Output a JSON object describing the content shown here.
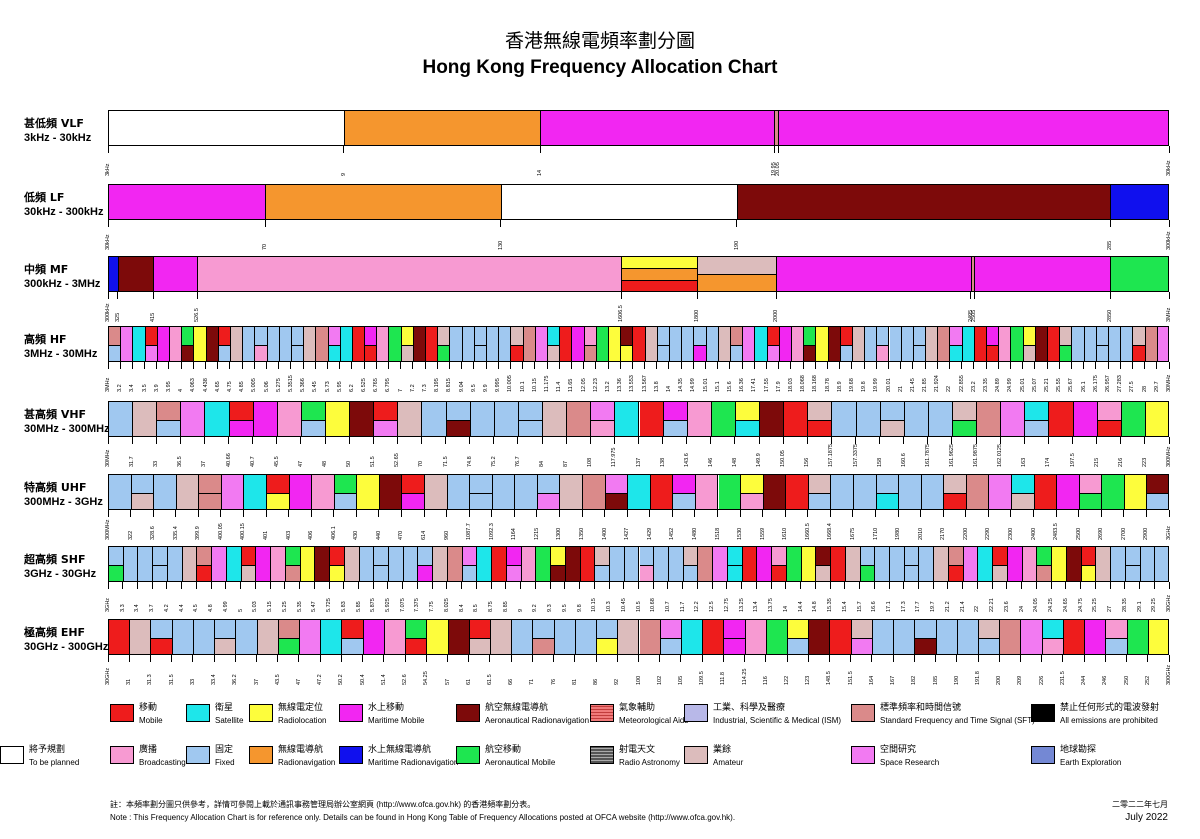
{
  "title_zh": "香港無線電頻率劃分圖",
  "title_en": "Hong Kong Frequency Allocation Chart",
  "colors": {
    "mobile": "#ee1c1c",
    "satellite": "#1ee6ea",
    "radiolocation": "#fdfd3c",
    "maritime_mobile": "#f226f2",
    "aero_radionav": "#7d0a0a",
    "met_aids": "#f07a7a",
    "ism": "#b8b8e8",
    "sft": "#da8a8a",
    "prohibited": "#000000",
    "broadcasting": "#f79ad2",
    "fixed": "#a0c8f0",
    "radionav": "#f5962e",
    "maritime_radionav": "#1010ee",
    "aero_mobile": "#1ee650",
    "radio_astronomy": "#8a8a8a",
    "amateur": "#dcbcbc",
    "space_research": "#f27af2",
    "earth_exploration": "#7488d4",
    "to_be_planned": "#ffffff"
  },
  "chart_data": {
    "type": "table",
    "title": "Hong Kong Frequency Allocation Chart",
    "bands": [
      {
        "label_zh": "甚低頻 VLF",
        "range": "3kHz - 30kHz",
        "start": "3kHz",
        "end": "30kHz",
        "ticks": [
          9,
          14,
          19.95,
          20.05
        ],
        "segments": [
          {
            "from": 3,
            "to": 9,
            "services": [
              "to_be_planned"
            ]
          },
          {
            "from": 9,
            "to": 14,
            "services": [
              "radionav"
            ]
          },
          {
            "from": 14,
            "to": 19.95,
            "services": [
              "maritime_mobile"
            ]
          },
          {
            "from": 19.95,
            "to": 20.05,
            "services": [
              "sft"
            ]
          },
          {
            "from": 20.05,
            "to": 30,
            "services": [
              "maritime_mobile"
            ]
          }
        ]
      },
      {
        "label_zh": "低頻 LF",
        "range": "30kHz - 300kHz",
        "start": "30kHz",
        "end": "300kHz",
        "ticks": [
          70,
          130,
          190,
          285
        ],
        "segments": [
          {
            "from": 30,
            "to": 70,
            "services": [
              "maritime_mobile"
            ]
          },
          {
            "from": 70,
            "to": 130,
            "services": [
              "radionav"
            ]
          },
          {
            "from": 130,
            "to": 190,
            "services": [
              "to_be_planned"
            ]
          },
          {
            "from": 190,
            "to": 285,
            "services": [
              "aero_radionav"
            ]
          },
          {
            "from": 285,
            "to": 300,
            "services": [
              "maritime_radionav"
            ]
          }
        ]
      },
      {
        "label_zh": "中頻 MF",
        "range": "300kHz - 3MHz",
        "start": "300kHz",
        "end": "3MHz",
        "ticks": [
          325,
          415,
          526.5,
          1606.5,
          1800,
          2000,
          2495,
          2505,
          2850
        ],
        "segments": [
          {
            "from": 300,
            "to": 325,
            "services": [
              "maritime_radionav"
            ]
          },
          {
            "from": 325,
            "to": 415,
            "services": [
              "aero_radionav"
            ]
          },
          {
            "from": 415,
            "to": 526.5,
            "services": [
              "maritime_mobile"
            ]
          },
          {
            "from": 526.5,
            "to": 1606.5,
            "services": [
              "broadcasting"
            ]
          },
          {
            "from": 1606.5,
            "to": 1800,
            "services": [
              "radiolocation",
              "radionav",
              "mobile"
            ]
          },
          {
            "from": 1800,
            "to": 2000,
            "services": [
              "amateur",
              "radionav"
            ]
          },
          {
            "from": 2000,
            "to": 2495,
            "services": [
              "maritime_mobile"
            ]
          },
          {
            "from": 2495,
            "to": 2505,
            "services": [
              "sft"
            ]
          },
          {
            "from": 2505,
            "to": 2850,
            "services": [
              "maritime_mobile"
            ]
          },
          {
            "from": 2850,
            "to": 3000,
            "services": [
              "aero_mobile"
            ]
          }
        ]
      },
      {
        "label_zh": "高頻 HF",
        "range": "3MHz - 30MHz",
        "start": "3MHz",
        "end": "30MHz",
        "ticks": [
          3.2,
          3.4,
          3.5,
          3.9,
          3.95,
          4,
          4.063,
          4.438,
          4.65,
          4.75,
          4.85,
          5.005,
          5.06,
          5.275,
          5.3515,
          5.366,
          5.45,
          5.73,
          5.95,
          6.2,
          6.525,
          6.765,
          6.795,
          7,
          7.2,
          7.3,
          8.195,
          8.815,
          9.04,
          9.5,
          9.9,
          9.995,
          10.005,
          10.1,
          10.15,
          11.175,
          11.4,
          11.65,
          12.05,
          12.23,
          13.2,
          13.36,
          13.553,
          13.567,
          13.8,
          14,
          14.35,
          14.99,
          15.01,
          15.1,
          15.6,
          16.36,
          17.41,
          17.55,
          17.9,
          18.03,
          18.068,
          18.168,
          18.78,
          18.9,
          19.68,
          19.8,
          19.99,
          20.01,
          21,
          21.45,
          21.85,
          21.924,
          22,
          22.855,
          23.2,
          23.35,
          24.89,
          24.99,
          25.01,
          25.07,
          25.21,
          25.55,
          25.67,
          26.1,
          26.175,
          26.957,
          27.283,
          27.5,
          28,
          29.7
        ]
      },
      {
        "label_zh": "甚高頻 VHF",
        "range": "30MHz - 300MHz",
        "start": "30MHz",
        "end": "300MHz",
        "ticks": [
          31.7,
          33,
          36.5,
          37,
          40.66,
          40.7,
          45.5,
          47,
          48,
          50,
          51.5,
          52.65,
          70,
          71.5,
          74.8,
          75.2,
          76.7,
          84,
          87,
          108,
          117.975,
          137,
          138,
          143.6,
          146,
          148,
          149.9,
          150.05,
          156,
          157.1875,
          157.3375,
          158,
          160.6,
          161.7875,
          161.9625,
          161.9875,
          162.0125,
          163,
          174,
          197.5,
          215,
          216,
          223
        ]
      },
      {
        "label_zh": "特高頻 UHF",
        "range": "300MHz - 3GHz",
        "start": "300MHz",
        "end": "3GHz",
        "ticks": [
          322,
          328.6,
          335.4,
          399.9,
          400.05,
          400.15,
          401,
          403,
          406,
          406.1,
          430,
          440,
          470,
          614,
          960,
          1087.7,
          1092.3,
          1164,
          1215,
          1300,
          1350,
          1400,
          1427,
          1429,
          1452,
          1480,
          1518,
          1530,
          1559,
          1610,
          1660.5,
          1668.4,
          1675,
          1710,
          1980,
          2010,
          2170,
          2200,
          2290,
          2300,
          2400,
          2483.5,
          2500,
          2690,
          2700,
          2900
        ]
      },
      {
        "label_zh": "超高頻 SHF",
        "range": "3GHz - 30GHz",
        "start": "3GHz",
        "end": "30GHz",
        "ticks": [
          3.3,
          3.4,
          3.7,
          4.2,
          4.4,
          4.5,
          4.8,
          4.99,
          5,
          5.03,
          5.15,
          5.25,
          5.35,
          5.47,
          5.725,
          5.83,
          5.85,
          5.875,
          5.925,
          7.075,
          7.375,
          7.75,
          8.025,
          8.4,
          8.5,
          8.75,
          8.85,
          9,
          9.2,
          9.3,
          9.5,
          9.8,
          10.15,
          10.3,
          10.45,
          10.5,
          10.68,
          10.7,
          11.7,
          12.2,
          12.5,
          12.75,
          13.25,
          13.4,
          13.75,
          14,
          14.4,
          14.8,
          15.35,
          15.4,
          15.7,
          16.6,
          17.1,
          17.3,
          17.7,
          19.7,
          21.2,
          21.4,
          22,
          22.21,
          23.6,
          24,
          24.05,
          24.25,
          24.65,
          24.75,
          25.25,
          27,
          28.35,
          29.1,
          29.25
        ]
      },
      {
        "label_zh": "極高頻 EHF",
        "range": "30GHz - 300GHz",
        "start": "30GHz",
        "end": "300GHz",
        "ticks": [
          31,
          31.3,
          31.5,
          33,
          33.4,
          36.2,
          37,
          43.5,
          47,
          47.2,
          50.2,
          50.4,
          51.4,
          52.6,
          54.25,
          57,
          61,
          61.5,
          66,
          71,
          76,
          81,
          86,
          92,
          100,
          102,
          105,
          109.5,
          111.8,
          114.25,
          116,
          122,
          123,
          148.5,
          151.5,
          164,
          167,
          182,
          185,
          190,
          191.8,
          200,
          209,
          226,
          231.5,
          244,
          246,
          250,
          252
        ]
      }
    ]
  },
  "legend": [
    {
      "key": "mobile",
      "zh": "移動",
      "en": "Mobile"
    },
    {
      "key": "satellite",
      "zh": "衛星",
      "en": "Satellite"
    },
    {
      "key": "radiolocation",
      "zh": "無線電定位",
      "en": "Radiolocation"
    },
    {
      "key": "maritime_mobile",
      "zh": "水上移動",
      "en": "Maritime Mobile"
    },
    {
      "key": "aero_radionav",
      "zh": "航空無線電導航",
      "en": "Aeronautical Radionavigation"
    },
    {
      "key": "met_aids",
      "zh": "氣象輔助",
      "en": "Meteorological Aids"
    },
    {
      "key": "ism",
      "zh": "工業、科學及醫療",
      "en": "Industrial, Scientific & Medical (ISM)"
    },
    {
      "key": "sft",
      "zh": "標準頻率和時間信號",
      "en": "Standard Frequency and Time Signal (SFT)"
    },
    {
      "key": "prohibited",
      "zh": "禁止任何形式的電波發射",
      "en": "All emissions are prohibited"
    },
    {
      "key": "broadcasting",
      "zh": "廣播",
      "en": "Broadcasting"
    },
    {
      "key": "fixed",
      "zh": "固定",
      "en": "Fixed"
    },
    {
      "key": "radionav",
      "zh": "無線電導航",
      "en": "Radionavigation"
    },
    {
      "key": "maritime_radionav",
      "zh": "水上無線電導航",
      "en": "Maritime Radionavigation"
    },
    {
      "key": "aero_mobile",
      "zh": "航空移動",
      "en": "Aeronautical Mobile"
    },
    {
      "key": "radio_astronomy",
      "zh": "射電天文",
      "en": "Radio Astronomy"
    },
    {
      "key": "amateur",
      "zh": "業餘",
      "en": "Amateur"
    },
    {
      "key": "space_research",
      "zh": "空間研究",
      "en": "Space Research"
    },
    {
      "key": "earth_exploration",
      "zh": "地球勘探",
      "en": "Earth Exploration"
    },
    {
      "key": "to_be_planned",
      "zh": "將予規劃",
      "en": "To be planned"
    }
  ],
  "note_zh": "註：本頻率劃分圖只供參考，詳情可參閱上載於通訊事務管理局辦公室網頁 (http://www.ofca.gov.hk) 的香港頻率劃分表。",
  "note_en": "Note : This Frequency Allocation Chart is for reference only.  Details can be found in Hong Kong Table of Frequency Allocations posted at OFCA website (http://www.ofca.gov.hk).",
  "date_zh": "二零二二年七月",
  "date_en": "July 2022"
}
